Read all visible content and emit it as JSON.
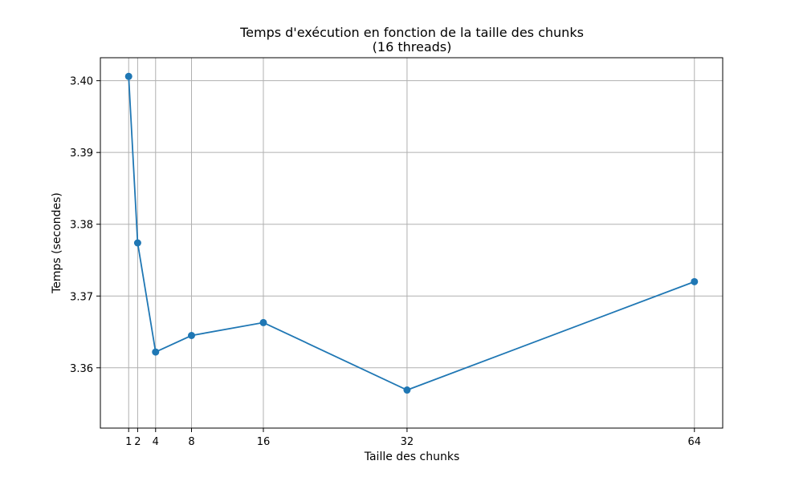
{
  "chart_data": {
    "type": "line",
    "title": "Temps d'exécution en fonction de la taille des chunks",
    "subtitle": "(16 threads)",
    "xlabel": "Taille des chunks",
    "ylabel": "Temps (secondes)",
    "x": [
      1,
      2,
      4,
      8,
      16,
      32,
      64
    ],
    "series": [
      {
        "values": [
          3.4006,
          3.3774,
          3.3622,
          3.3645,
          3.3663,
          3.3569,
          3.372
        ]
      }
    ],
    "xticks": [
      1,
      2,
      4,
      8,
      16,
      32,
      64
    ],
    "xtick_labels": [
      "1",
      "2",
      "4",
      "8",
      "16",
      "32",
      "64"
    ],
    "yticks": [
      3.36,
      3.37,
      3.38,
      3.39,
      3.4
    ],
    "ytick_labels": [
      "3.36",
      "3.37",
      "3.38",
      "3.39",
      "3.40"
    ],
    "xlim": [
      -2.15,
      67.15
    ],
    "ylim": [
      3.3516,
      3.4032
    ],
    "grid": true,
    "marker": "circle",
    "colors": {
      "line": "#1f77b4",
      "grid": "#b0b0b0",
      "axes": "#000000"
    }
  }
}
